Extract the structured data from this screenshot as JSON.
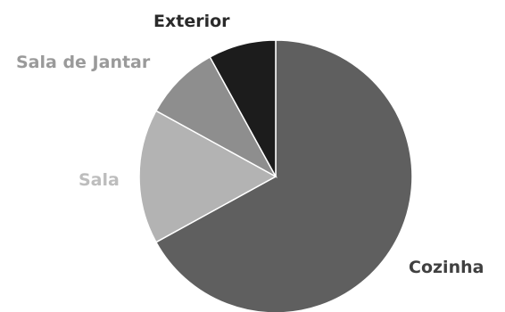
{
  "chart_data": {
    "type": "pie",
    "title": "",
    "slices": [
      {
        "label": "Cozinha",
        "value": 67,
        "color": "#5f5f5f",
        "label_color": "#404040"
      },
      {
        "label": "Sala",
        "value": 16,
        "color": "#b3b3b3",
        "label_color": "#bdbdbd"
      },
      {
        "label": "Sala de Jantar",
        "value": 9,
        "color": "#8e8e8e",
        "label_color": "#9a9a9a"
      },
      {
        "label": "Exterior",
        "value": 8,
        "color": "#1c1c1c",
        "label_color": "#2a2a2a"
      }
    ],
    "legend": "none",
    "labels": "outside"
  }
}
